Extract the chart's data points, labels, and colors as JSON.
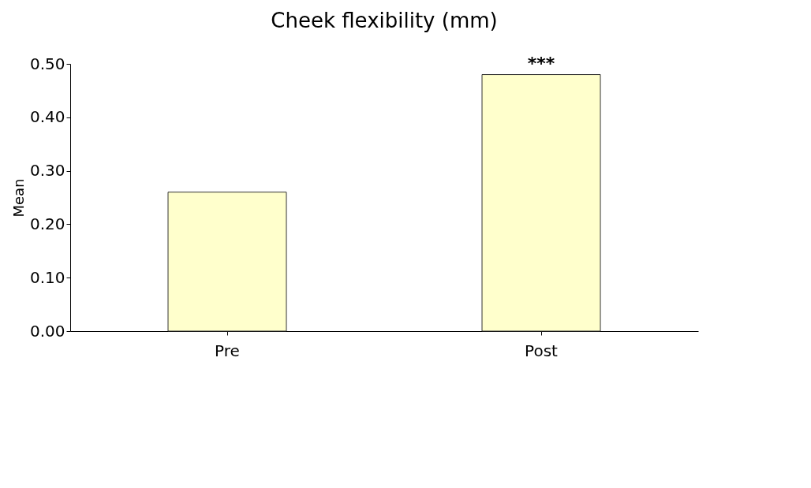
{
  "chart_data": {
    "type": "bar",
    "title": "Cheek flexibility (mm)",
    "ylabel": "Mean",
    "categories": [
      "Pre",
      "Post"
    ],
    "values": [
      0.26,
      0.48
    ],
    "color": "#ffffcc",
    "ylim": [
      0,
      0.5
    ],
    "yticks": [
      {
        "value": 0,
        "label": "0.00"
      },
      {
        "value": 0.1,
        "label": "0.10"
      },
      {
        "value": 0.2,
        "label": "0.20"
      },
      {
        "value": 0.3,
        "label": "0.30"
      },
      {
        "value": 0.4,
        "label": "0.40"
      },
      {
        "value": 0.5,
        "label": "0.50"
      }
    ],
    "annotations": [
      {
        "text": "***",
        "x": "Post",
        "y": 0.48
      }
    ],
    "grid": false
  }
}
